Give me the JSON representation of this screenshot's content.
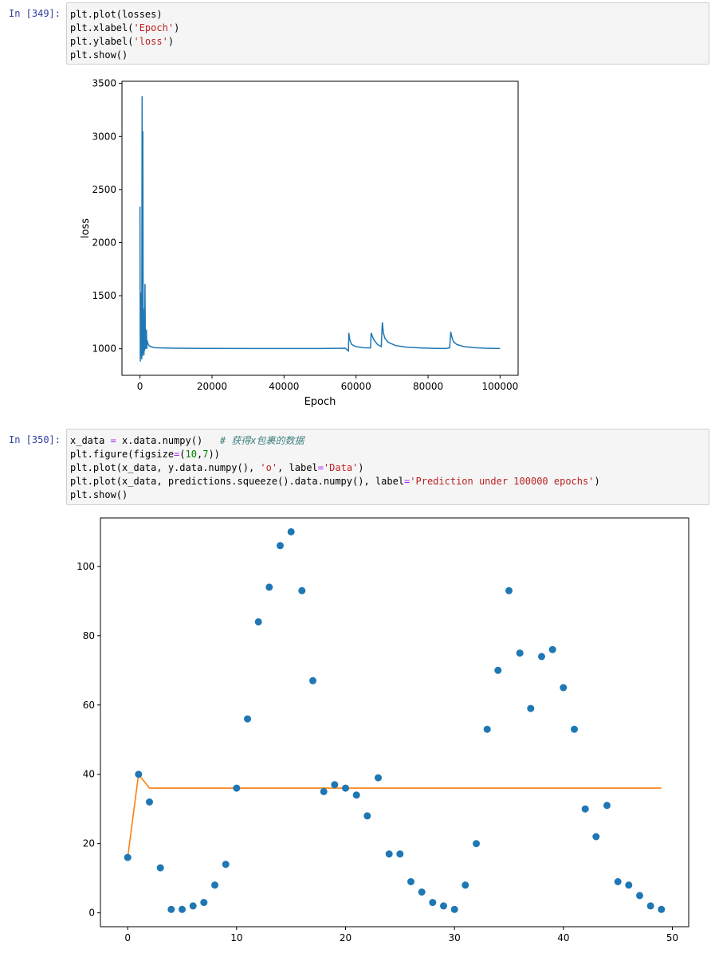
{
  "cells": [
    {
      "prompt": "In  [349]:",
      "code_lines": [
        "plt.plot(losses)",
        "plt.xlabel('Epoch')",
        "plt.ylabel('loss')",
        "plt.show()"
      ]
    },
    {
      "prompt": "In  [350]:",
      "code_lines": [
        "x_data = x.data.numpy()   # 获得x包裹的数据",
        "plt.figure(figsize=(10,7))",
        "plt.plot(x_data, y.data.numpy(), 'o', label='Data')",
        "plt.plot(x_data, predictions.squeeze().data.numpy(), label='Prediction under 100000 epochs')",
        "plt.show()"
      ]
    }
  ],
  "chart_data": [
    {
      "type": "line",
      "title": "",
      "xlabel": "Epoch",
      "ylabel": "loss",
      "xlim": [
        -5000,
        105000
      ],
      "ylim": [
        750,
        3520
      ],
      "xticks": [
        0,
        20000,
        40000,
        60000,
        80000,
        100000
      ],
      "xtick_labels": [
        "0",
        "20000",
        "40000",
        "60000",
        "80000",
        "100000"
      ],
      "yticks": [
        1000,
        1500,
        2000,
        2500,
        3000,
        3500
      ],
      "ytick_labels": [
        "1000",
        "1500",
        "2000",
        "2500",
        "3000",
        "3500"
      ],
      "grid": false,
      "color": "#1f77b4",
      "series": [
        {
          "x": [
            0,
            100,
            200,
            300,
            400,
            500,
            600,
            700,
            800,
            900,
            1000,
            1100,
            1200,
            1300,
            1400,
            1500,
            1600,
            1700,
            1800,
            1900,
            2000,
            2200,
            2500,
            3000,
            4000,
            6000,
            10000,
            20000,
            30000,
            40000,
            50000,
            57000,
            57900,
            58000,
            58300,
            58800,
            60000,
            62000,
            64000,
            64200,
            64500,
            65000,
            66000,
            67000,
            67300,
            67600,
            68000,
            69000,
            71000,
            74000,
            78000,
            82000,
            85000,
            86000,
            86300,
            86600,
            87000,
            88000,
            90000,
            93000,
            96000,
            100000
          ],
          "y": [
            2340,
            880,
            1530,
            920,
            1380,
            900,
            3380,
            930,
            3050,
            960,
            1380,
            940,
            1200,
            980,
            1610,
            1000,
            1120,
            1000,
            1180,
            1000,
            1080,
            1050,
            1030,
            1020,
            1010,
            1008,
            1005,
            1003,
            1002,
            1002,
            1002,
            1005,
            980,
            1150,
            1080,
            1040,
            1020,
            1010,
            1008,
            1150,
            1120,
            1080,
            1040,
            1020,
            1250,
            1150,
            1100,
            1060,
            1030,
            1015,
            1008,
            1004,
            1002,
            1010,
            1160,
            1110,
            1070,
            1040,
            1020,
            1010,
            1005,
            1002
          ]
        }
      ]
    },
    {
      "type": "scatter",
      "title": "",
      "xlabel": "",
      "ylabel": "",
      "xlim": [
        -2.5,
        51.5
      ],
      "ylim": [
        -4,
        114
      ],
      "xticks": [
        0,
        10,
        20,
        30,
        40,
        50
      ],
      "xtick_labels": [
        "0",
        "10",
        "20",
        "30",
        "40",
        "50"
      ],
      "yticks": [
        0,
        20,
        40,
        60,
        80,
        100
      ],
      "ytick_labels": [
        "0",
        "20",
        "40",
        "60",
        "80",
        "100"
      ],
      "grid": false,
      "series": [
        {
          "label": "Data",
          "type": "scatter",
          "color": "#1f77b4",
          "x": [
            0,
            1,
            2,
            3,
            4,
            5,
            6,
            7,
            8,
            9,
            10,
            11,
            12,
            13,
            14,
            15,
            16,
            17,
            18,
            19,
            20,
            21,
            22,
            23,
            24,
            25,
            26,
            27,
            28,
            29,
            30,
            31,
            32,
            33,
            34,
            35,
            36,
            37,
            38,
            39,
            40,
            41,
            42,
            43,
            44,
            45,
            46,
            47,
            48,
            49
          ],
          "y": [
            16,
            40,
            32,
            13,
            1,
            1,
            2,
            3,
            8,
            14,
            36,
            56,
            84,
            94,
            106,
            110,
            93,
            67,
            35,
            37,
            36,
            34,
            28,
            39,
            17,
            17,
            9,
            6,
            3,
            2,
            1,
            8,
            20,
            53,
            70,
            93,
            75,
            59,
            74,
            76,
            65,
            53,
            30,
            22,
            31,
            9,
            8,
            5,
            2,
            1
          ]
        },
        {
          "label": "Prediction under 100000 epochs",
          "type": "line",
          "color": "#ff7f0e",
          "x": [
            0,
            1,
            2,
            3,
            4,
            5,
            6,
            7,
            8,
            9,
            10,
            11,
            12,
            13,
            14,
            15,
            16,
            17,
            18,
            19,
            20,
            21,
            22,
            23,
            24,
            25,
            26,
            27,
            28,
            29,
            30,
            31,
            32,
            33,
            34,
            35,
            36,
            37,
            38,
            39,
            40,
            41,
            42,
            43,
            44,
            45,
            46,
            47,
            48,
            49
          ],
          "y": [
            16,
            40,
            36,
            36,
            36,
            36,
            36,
            36,
            36,
            36,
            36,
            36,
            36,
            36,
            36,
            36,
            36,
            36,
            36,
            36,
            36,
            36,
            36,
            36,
            36,
            36,
            36,
            36,
            36,
            36,
            36,
            36,
            36,
            36,
            36,
            36,
            36,
            36,
            36,
            36,
            36,
            36,
            36,
            36,
            36,
            36,
            36,
            36,
            36,
            36
          ]
        }
      ]
    }
  ]
}
